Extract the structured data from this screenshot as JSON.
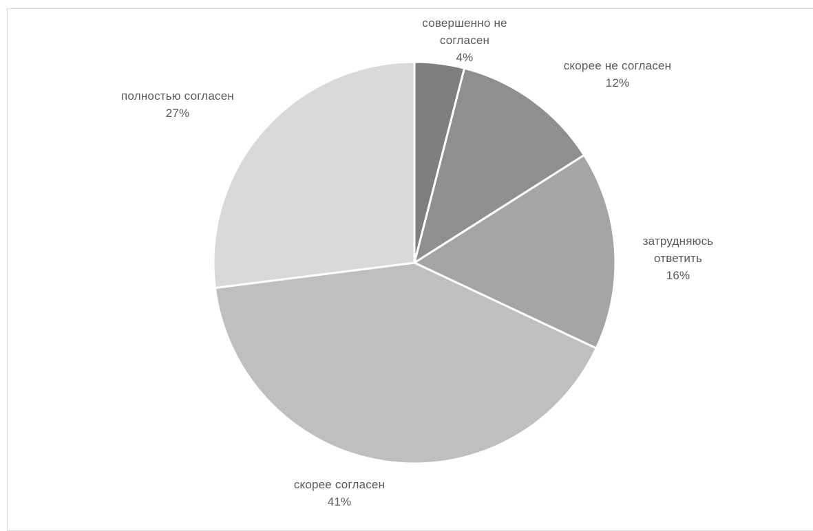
{
  "chart_data": {
    "type": "pie",
    "title": "",
    "slices": [
      {
        "label_lines": [
          "совершенно не",
          "согласен"
        ],
        "value": 4,
        "value_label": "4%",
        "color": "#7f7f7f"
      },
      {
        "label_lines": [
          "скорее не согласен"
        ],
        "value": 12,
        "value_label": "12%",
        "color": "#8f8f8f"
      },
      {
        "label_lines": [
          "затрудняюсь",
          "ответить"
        ],
        "value": 16,
        "value_label": "16%",
        "color": "#a5a5a5"
      },
      {
        "label_lines": [
          "скорее согласен"
        ],
        "value": 41,
        "value_label": "41%",
        "color": "#bfbfbf"
      },
      {
        "label_lines": [
          "полностью согласен"
        ],
        "value": 27,
        "value_label": "27%",
        "color": "#d9d9d9"
      }
    ],
    "start_angle": "12 o'clock",
    "direction": "clockwise",
    "legend": "none",
    "data_labels": "outside"
  }
}
